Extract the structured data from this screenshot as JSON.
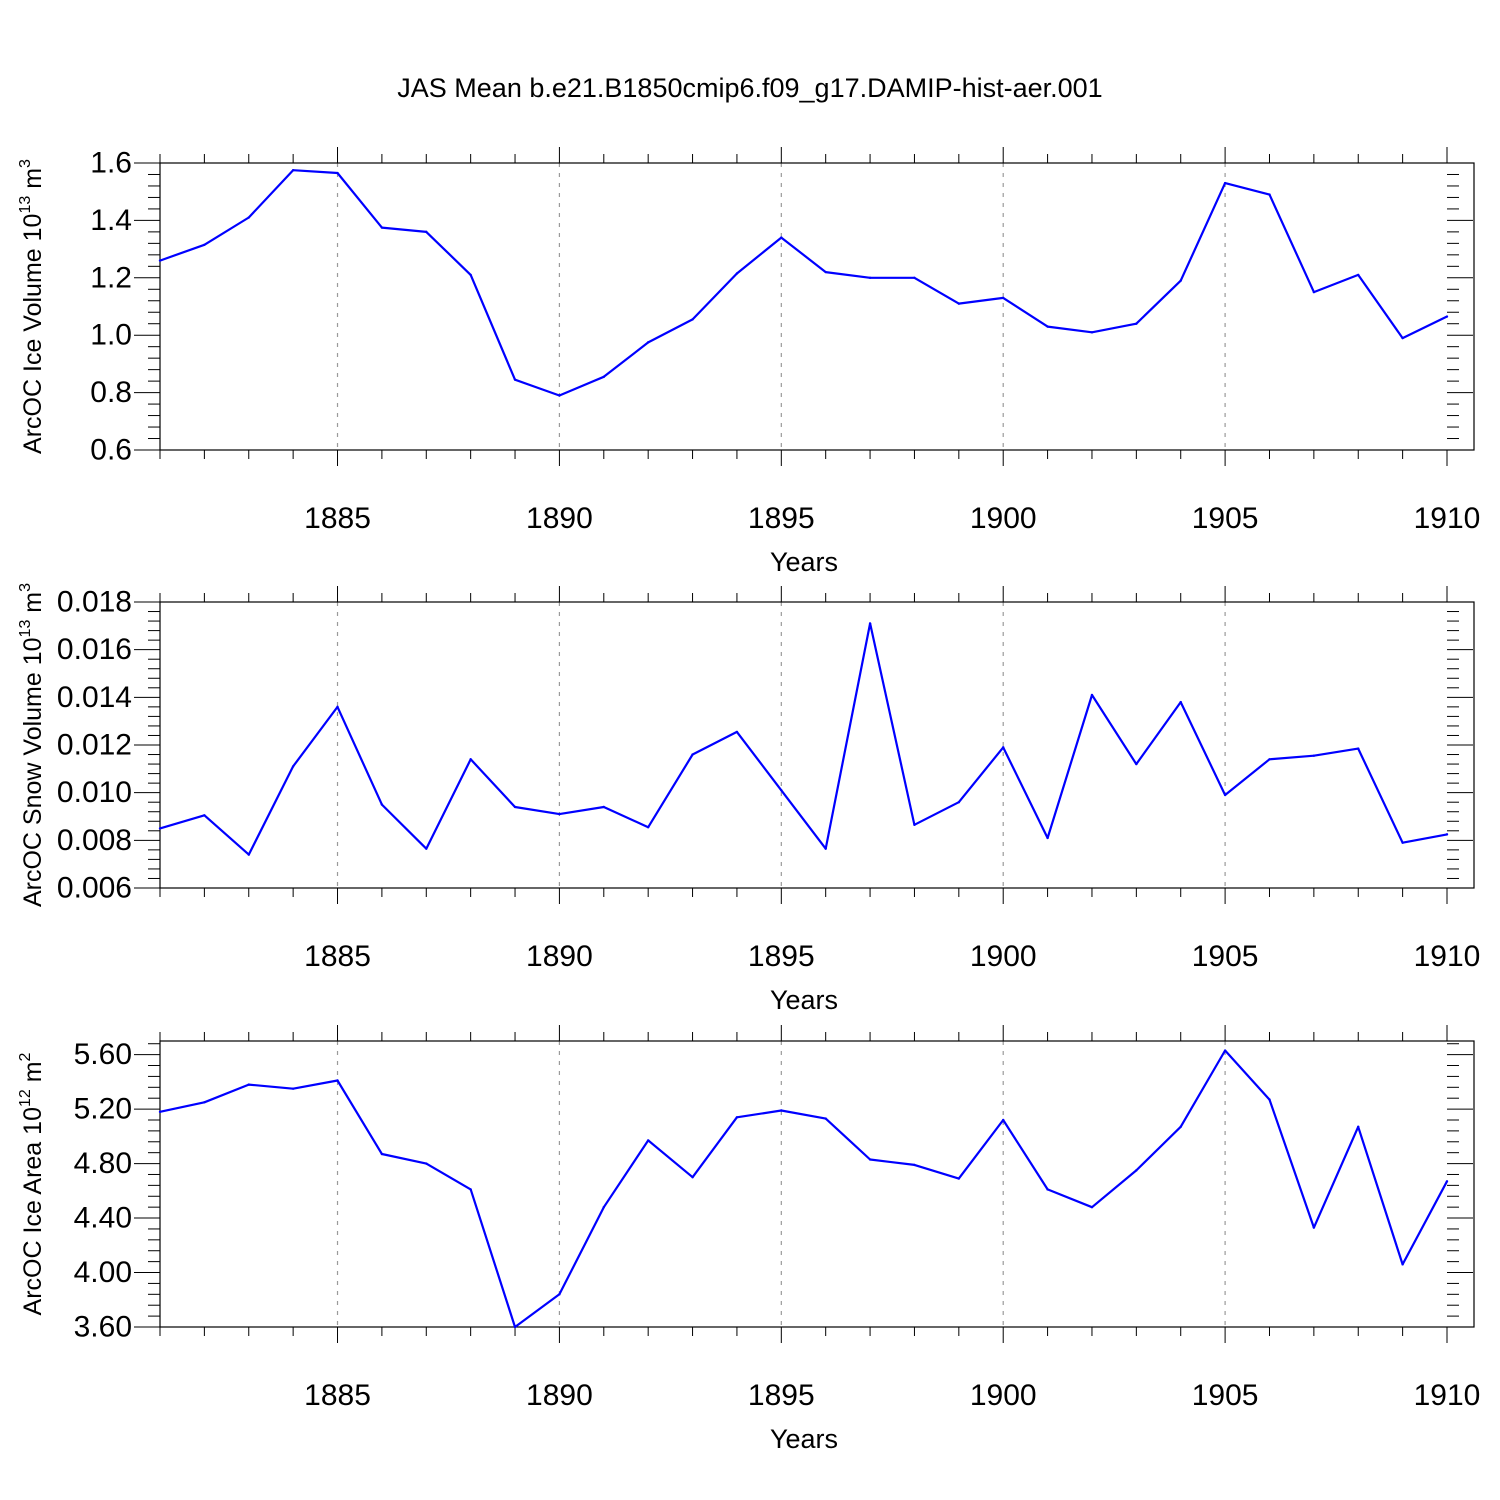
{
  "title": "JAS Mean b.e21.B1850cmip6.f09_g17.DAMIP-hist-aer.001",
  "series_color": "#0000ff",
  "chart_data": [
    {
      "type": "line",
      "ylabel": "ArcOC Ice Volume 10",
      "ylabel_sup": "13",
      "ylabel_unit": " m",
      "ylabel_unit_sup": "3",
      "xlabel": "Years",
      "xlim": [
        1881,
        1910
      ],
      "ylim": [
        0.6,
        1.6
      ],
      "yticks": [
        0.6,
        0.8,
        1.0,
        1.2,
        1.4,
        1.6
      ],
      "ytick_labels": [
        "0.6",
        "0.8",
        "1.0",
        "1.2",
        "1.4",
        "1.6"
      ],
      "xticks": [
        1885,
        1890,
        1895,
        1900,
        1905,
        1910
      ],
      "xtick_labels": [
        "1885",
        "1890",
        "1895",
        "1900",
        "1905",
        "1910"
      ],
      "grid": "vertical dashed at major x ticks",
      "x": [
        1881,
        1882,
        1883,
        1884,
        1885,
        1886,
        1887,
        1888,
        1889,
        1890,
        1891,
        1892,
        1893,
        1894,
        1895,
        1896,
        1897,
        1898,
        1899,
        1900,
        1901,
        1902,
        1903,
        1904,
        1905,
        1906,
        1907,
        1908,
        1909,
        1910
      ],
      "values": [
        1.26,
        1.315,
        1.41,
        1.575,
        1.565,
        1.375,
        1.36,
        1.21,
        0.845,
        0.79,
        0.855,
        0.975,
        1.055,
        1.215,
        1.34,
        1.22,
        1.2,
        1.2,
        1.11,
        1.13,
        1.03,
        1.01,
        1.04,
        1.19,
        1.53,
        1.49,
        1.15,
        1.21,
        0.99,
        1.065
      ]
    },
    {
      "type": "line",
      "ylabel": "ArcOC Snow Volume 10",
      "ylabel_sup": "13",
      "ylabel_unit": " m",
      "ylabel_unit_sup": "3",
      "xlabel": "Years",
      "xlim": [
        1881,
        1910
      ],
      "ylim": [
        0.006,
        0.018
      ],
      "yticks": [
        0.006,
        0.008,
        0.01,
        0.012,
        0.014,
        0.016,
        0.018
      ],
      "ytick_labels": [
        "0.006",
        "0.008",
        "0.010",
        "0.012",
        "0.014",
        "0.016",
        "0.018"
      ],
      "xticks": [
        1885,
        1890,
        1895,
        1900,
        1905,
        1910
      ],
      "xtick_labels": [
        "1885",
        "1890",
        "1895",
        "1900",
        "1905",
        "1910"
      ],
      "grid": "vertical dashed at major x ticks",
      "x": [
        1881,
        1882,
        1883,
        1884,
        1885,
        1886,
        1887,
        1888,
        1889,
        1890,
        1891,
        1892,
        1893,
        1894,
        1895,
        1896,
        1897,
        1898,
        1899,
        1900,
        1901,
        1902,
        1903,
        1904,
        1905,
        1906,
        1907,
        1908,
        1909,
        1910
      ],
      "values": [
        0.0085,
        0.00905,
        0.0074,
        0.0111,
        0.0136,
        0.0095,
        0.00765,
        0.0114,
        0.0094,
        0.0091,
        0.0094,
        0.00855,
        0.0116,
        0.01255,
        0.0101,
        0.00765,
        0.0171,
        0.00865,
        0.0096,
        0.0119,
        0.0081,
        0.0141,
        0.0112,
        0.0138,
        0.0099,
        0.0114,
        0.01155,
        0.01185,
        0.0079,
        0.00825
      ]
    },
    {
      "type": "line",
      "ylabel": "ArcOC Ice Area 10",
      "ylabel_sup": "12",
      "ylabel_unit": " m",
      "ylabel_unit_sup": "2",
      "xlabel": "Years",
      "xlim": [
        1881,
        1910
      ],
      "ylim": [
        3.6,
        5.7
      ],
      "yticks": [
        3.6,
        4.0,
        4.4,
        4.8,
        5.2,
        5.6
      ],
      "ytick_labels": [
        "3.60",
        "4.00",
        "4.40",
        "4.80",
        "5.20",
        "5.60"
      ],
      "xticks": [
        1885,
        1890,
        1895,
        1900,
        1905,
        1910
      ],
      "xtick_labels": [
        "1885",
        "1890",
        "1895",
        "1900",
        "1905",
        "1910"
      ],
      "grid": "vertical dashed at major x ticks",
      "x": [
        1881,
        1882,
        1883,
        1884,
        1885,
        1886,
        1887,
        1888,
        1889,
        1890,
        1891,
        1892,
        1893,
        1894,
        1895,
        1896,
        1897,
        1898,
        1899,
        1900,
        1901,
        1902,
        1903,
        1904,
        1905,
        1906,
        1907,
        1908,
        1909,
        1910
      ],
      "values": [
        5.18,
        5.25,
        5.38,
        5.35,
        5.41,
        4.87,
        4.8,
        4.61,
        3.6,
        3.84,
        4.48,
        4.97,
        4.7,
        5.14,
        5.19,
        5.13,
        4.83,
        4.79,
        4.69,
        5.12,
        4.61,
        4.48,
        4.75,
        5.07,
        5.63,
        5.27,
        4.33,
        5.07,
        4.06,
        4.67
      ]
    }
  ]
}
